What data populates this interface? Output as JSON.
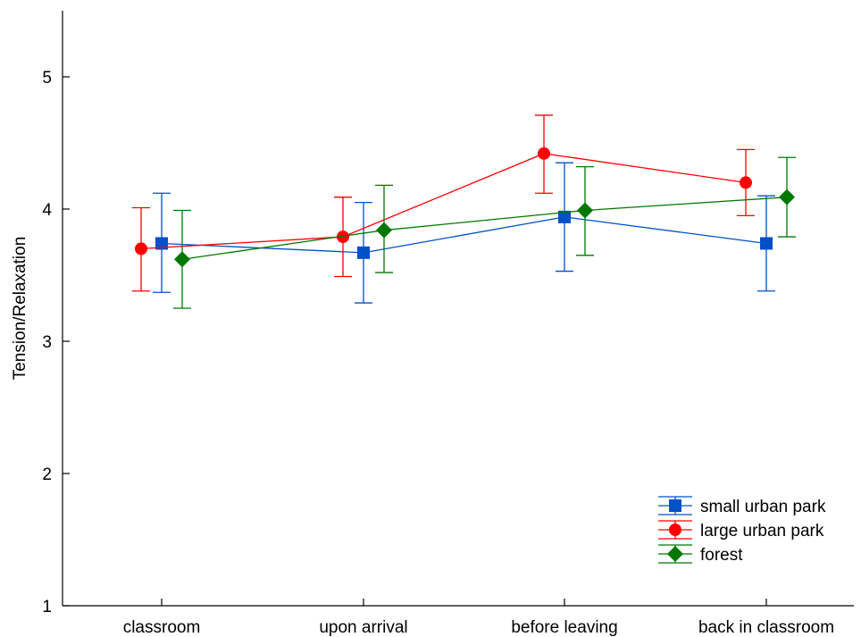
{
  "chart_data": {
    "type": "line",
    "title": "",
    "xlabel": "",
    "ylabel": "Tension/Relaxation",
    "categories": [
      "classroom",
      "upon arrival",
      "before leaving",
      "back in classroom"
    ],
    "ylim": [
      1,
      5.5
    ],
    "yticks": [
      1,
      2,
      3,
      4,
      5
    ],
    "grid": false,
    "legend_position": "bottom-right",
    "series": [
      {
        "name": "small urban park",
        "color": "#0050c8",
        "marker": "square",
        "values": [
          3.74,
          3.67,
          3.94,
          3.74
        ],
        "error_low": [
          3.37,
          3.29,
          3.53,
          3.38
        ],
        "error_high": [
          4.12,
          4.05,
          4.35,
          4.1
        ]
      },
      {
        "name": "large urban park",
        "color": "#ff0000",
        "marker": "circle",
        "values": [
          3.7,
          3.79,
          4.42,
          4.2
        ],
        "error_low": [
          3.38,
          3.49,
          4.12,
          3.95
        ],
        "error_high": [
          4.01,
          4.09,
          4.71,
          4.45
        ]
      },
      {
        "name": "forest",
        "color": "#007800",
        "marker": "diamond",
        "values": [
          3.62,
          3.84,
          3.99,
          4.09
        ],
        "error_low": [
          3.25,
          3.52,
          3.65,
          3.79
        ],
        "error_high": [
          3.99,
          4.18,
          4.32,
          4.39
        ]
      }
    ]
  }
}
